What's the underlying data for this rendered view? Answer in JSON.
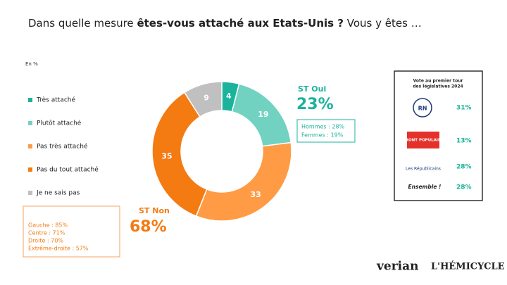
{
  "chart_data": {
    "type": "donut",
    "title": [
      "Dans quelle mesure",
      "êtes-vous attaché aux Etats-Unis ?",
      "Vous y êtes …"
    ],
    "unit_label": "En %",
    "categories": [
      "Très attaché",
      "Plutôt attaché",
      "Pas très attaché",
      "Pas du tout attaché",
      "Je ne sais pas"
    ],
    "values": [
      4,
      19,
      33,
      35,
      9
    ],
    "colors": [
      "#1bb39c",
      "#72d2c2",
      "#ff9b45",
      "#f47a12",
      "#c0c0c0"
    ],
    "st_oui": {
      "label": "ST Oui",
      "value": "23%",
      "details": [
        "Hommes : 28%",
        "Femmes : 19%"
      ]
    },
    "st_non": {
      "label": "ST Non",
      "value": "68%",
      "details": [
        "Gauche : 85%",
        "Centre : 71%",
        "Droite : 70%",
        "Extrême-droite : 57%"
      ]
    }
  },
  "panel": {
    "title": [
      "Vote au premier tour",
      "des législatives 2024"
    ],
    "rows": [
      {
        "logo": "RN",
        "value": "31%"
      },
      {
        "logo": "FRONT POPULAIRE",
        "value": "13%"
      },
      {
        "logo": "Les Républicains",
        "value": "28%"
      },
      {
        "logo": "Ensemble !",
        "value": "28%"
      }
    ]
  },
  "logos": [
    "verian",
    "L'HÉMICYCLE"
  ]
}
